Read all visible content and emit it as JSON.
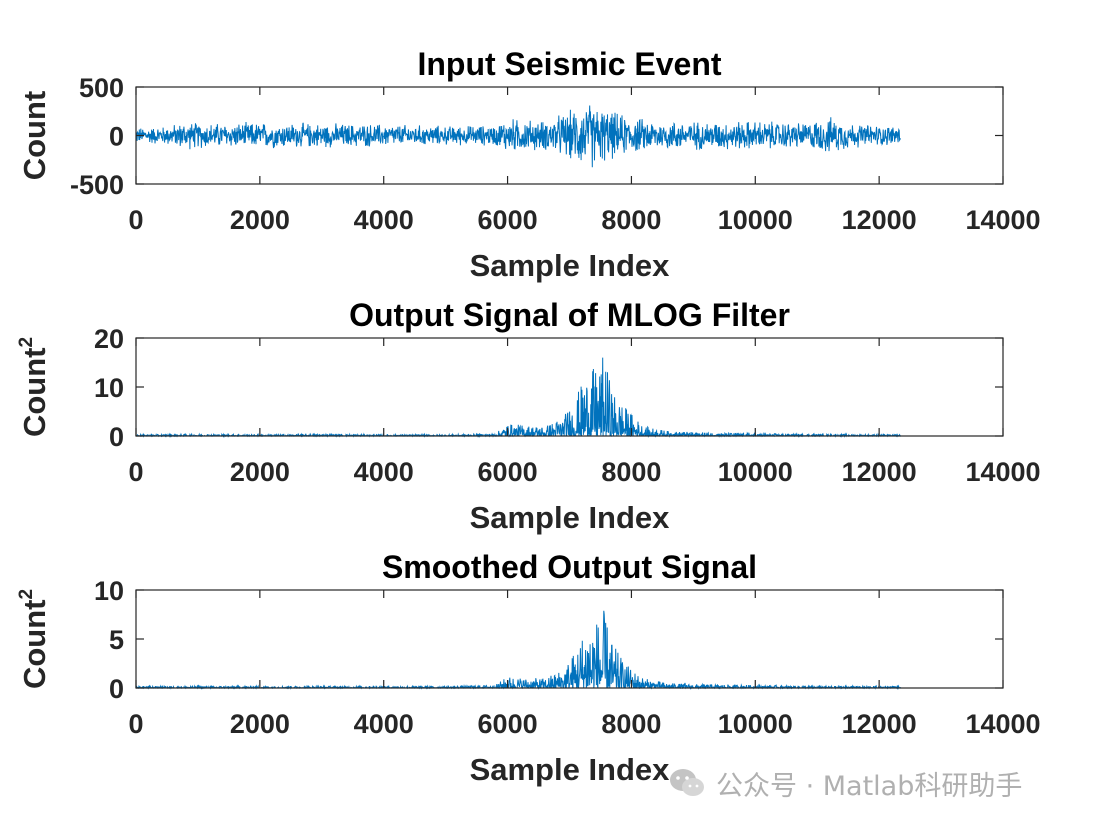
{
  "chart_data": [
    {
      "type": "line",
      "title": "Input Seismic Event",
      "xlabel": "Sample Index",
      "ylabel": "Count",
      "ylabel_sup": "",
      "xlim": [
        0,
        14000
      ],
      "ylim": [
        -500,
        500
      ],
      "xticks": [
        "0",
        "2000",
        "4000",
        "6000",
        "8000",
        "10000",
        "12000",
        "14000"
      ],
      "yticks": [
        "-500",
        "0",
        "500"
      ],
      "series": [
        {
          "color": "#0072BD",
          "kind": "bipolar",
          "n_samples": 12350,
          "x": [
            0,
            500,
            800,
            1000,
            1500,
            2000,
            3000,
            4000,
            5000,
            5800,
            6000,
            6200,
            6600,
            7000,
            7200,
            7400,
            7600,
            7800,
            8000,
            8400,
            8800,
            9200,
            10000,
            10800,
            11200,
            11600,
            12000,
            12350
          ],
          "amplitude": [
            90,
            110,
            160,
            150,
            140,
            150,
            140,
            130,
            110,
            120,
            200,
            190,
            170,
            280,
            370,
            380,
            300,
            250,
            210,
            170,
            170,
            160,
            170,
            150,
            210,
            140,
            120,
            110
          ]
        }
      ]
    },
    {
      "type": "line",
      "title": "Output Signal of MLOG Filter",
      "xlabel": "Sample Index",
      "ylabel": "Count",
      "ylabel_sup": "2",
      "xlim": [
        0,
        14000
      ],
      "ylim": [
        0,
        20
      ],
      "xticks": [
        "0",
        "2000",
        "4000",
        "6000",
        "8000",
        "10000",
        "12000",
        "14000"
      ],
      "yticks": [
        "0",
        "10",
        "20"
      ],
      "series": [
        {
          "color": "#0072BD",
          "kind": "positive",
          "n_samples": 12350,
          "x": [
            0,
            1000,
            2000,
            3000,
            4000,
            5000,
            5800,
            6000,
            6300,
            6600,
            6900,
            7100,
            7300,
            7500,
            7550,
            7700,
            7900,
            8200,
            8600,
            9000,
            10000,
            11000,
            12000,
            12350
          ],
          "amplitude": [
            0.3,
            0.4,
            0.3,
            0.4,
            0.3,
            0.3,
            0.5,
            2.5,
            2.2,
            2.0,
            4.0,
            8.0,
            13.5,
            14.0,
            17.0,
            9.0,
            6.0,
            2.0,
            1.0,
            0.8,
            0.5,
            0.4,
            0.3,
            0.3
          ]
        }
      ]
    },
    {
      "type": "line",
      "title": "Smoothed Output Signal",
      "xlabel": "Sample Index",
      "ylabel": "Count",
      "ylabel_sup": "2",
      "xlim": [
        0,
        14000
      ],
      "ylim": [
        0,
        10
      ],
      "xticks": [
        "0",
        "2000",
        "4000",
        "6000",
        "8000",
        "10000",
        "12000",
        "14000"
      ],
      "yticks": [
        "0",
        "5",
        "10"
      ],
      "series": [
        {
          "color": "#0072BD",
          "kind": "positive",
          "n_samples": 12350,
          "x": [
            0,
            1000,
            2000,
            3000,
            4000,
            5000,
            5800,
            6000,
            6300,
            6600,
            6900,
            7100,
            7300,
            7500,
            7550,
            7700,
            7900,
            8200,
            8600,
            9000,
            10000,
            11000,
            12000,
            12350
          ],
          "amplitude": [
            0.2,
            0.2,
            0.2,
            0.2,
            0.2,
            0.2,
            0.3,
            1.2,
            1.0,
            1.0,
            2.0,
            4.0,
            7.0,
            7.2,
            8.0,
            4.5,
            2.5,
            1.0,
            0.5,
            0.4,
            0.3,
            0.2,
            0.2,
            0.2
          ]
        }
      ]
    }
  ],
  "watermark": {
    "text": "公众号 · Matlab科研助手",
    "icon": "wechat-icon"
  }
}
